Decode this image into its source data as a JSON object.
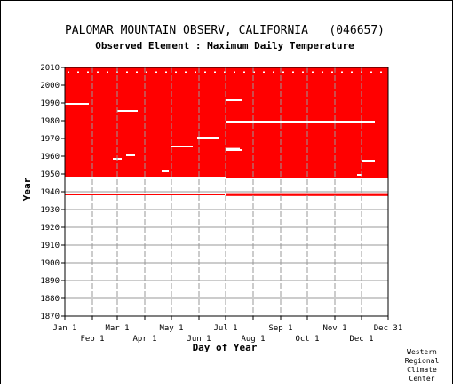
{
  "chart_data": {
    "type": "heatmap",
    "title": "PALOMAR MOUNTAIN OBSERV, CALIFORNIA   (046657)",
    "subtitle": "Observed Element : Maximum Daily Temperature",
    "xlabel": "Day of Year",
    "ylabel": "Year",
    "ylim": [
      1870,
      2010
    ],
    "y_ticks": [
      "1870",
      "1880",
      "1890",
      "1900",
      "1910",
      "1920",
      "1930",
      "1940",
      "1950",
      "1960",
      "1970",
      "1980",
      "1990",
      "2000",
      "2010"
    ],
    "x_ticks_top": [
      {
        "label": "Jan 1",
        "day": 1
      },
      {
        "label": "Mar 1",
        "day": 60
      },
      {
        "label": "May 1",
        "day": 121
      },
      {
        "label": "Jul 1",
        "day": 182
      },
      {
        "label": "Sep 1",
        "day": 244
      },
      {
        "label": "Nov 1",
        "day": 305
      },
      {
        "label": "Dec 31",
        "day": 365
      }
    ],
    "x_ticks_bottom": [
      {
        "label": "Feb 1",
        "day": 32
      },
      {
        "label": "Apr 1",
        "day": 91
      },
      {
        "label": "Jun 1",
        "day": 152
      },
      {
        "label": "Aug 1",
        "day": 213
      },
      {
        "label": "Oct 1",
        "day": 274
      },
      {
        "label": "Dec 1",
        "day": 335
      }
    ],
    "grid": true,
    "data_color": "#ff0000",
    "coverage": [
      {
        "year_from": 1948.5,
        "year_to": 2010,
        "day_from": 1,
        "day_to": 365
      },
      {
        "year_from": 1947.5,
        "year_to": 1948.5,
        "day_from": 182,
        "day_to": 365
      },
      {
        "year_from": 1938,
        "year_to": 1939,
        "day_from": 1,
        "day_to": 181,
        "thin": true
      },
      {
        "year_from": 1937.6,
        "year_to": 1939.2,
        "day_from": 182,
        "day_to": 365
      }
    ],
    "gaps": [
      {
        "year": 2007.5,
        "day_from": 1,
        "day_to": 365,
        "kind": "dots"
      },
      {
        "year": 1989.5,
        "day_from": 1,
        "day_to": 28
      },
      {
        "year": 1985.5,
        "day_from": 60,
        "day_to": 83
      },
      {
        "year": 1991.5,
        "day_from": 182,
        "day_to": 200
      },
      {
        "year": 1979.5,
        "day_from": 182,
        "day_to": 350
      },
      {
        "year": 1970.5,
        "day_from": 150,
        "day_to": 175
      },
      {
        "year": 1965.5,
        "day_from": 120,
        "day_to": 145
      },
      {
        "year": 1963.5,
        "day_from": 183,
        "day_to": 200
      },
      {
        "year": 1964.2,
        "day_from": 183,
        "day_to": 198
      },
      {
        "year": 1958.5,
        "day_from": 55,
        "day_to": 65
      },
      {
        "year": 1957.5,
        "day_from": 335,
        "day_to": 350
      },
      {
        "year": 1951.5,
        "day_from": 110,
        "day_to": 118
      },
      {
        "year": 1949.5,
        "day_from": 330,
        "day_to": 335
      },
      {
        "year": 1960.5,
        "day_from": 70,
        "day_to": 80
      }
    ]
  },
  "credit": [
    "Western",
    "Regional",
    "Climate",
    "Center"
  ]
}
